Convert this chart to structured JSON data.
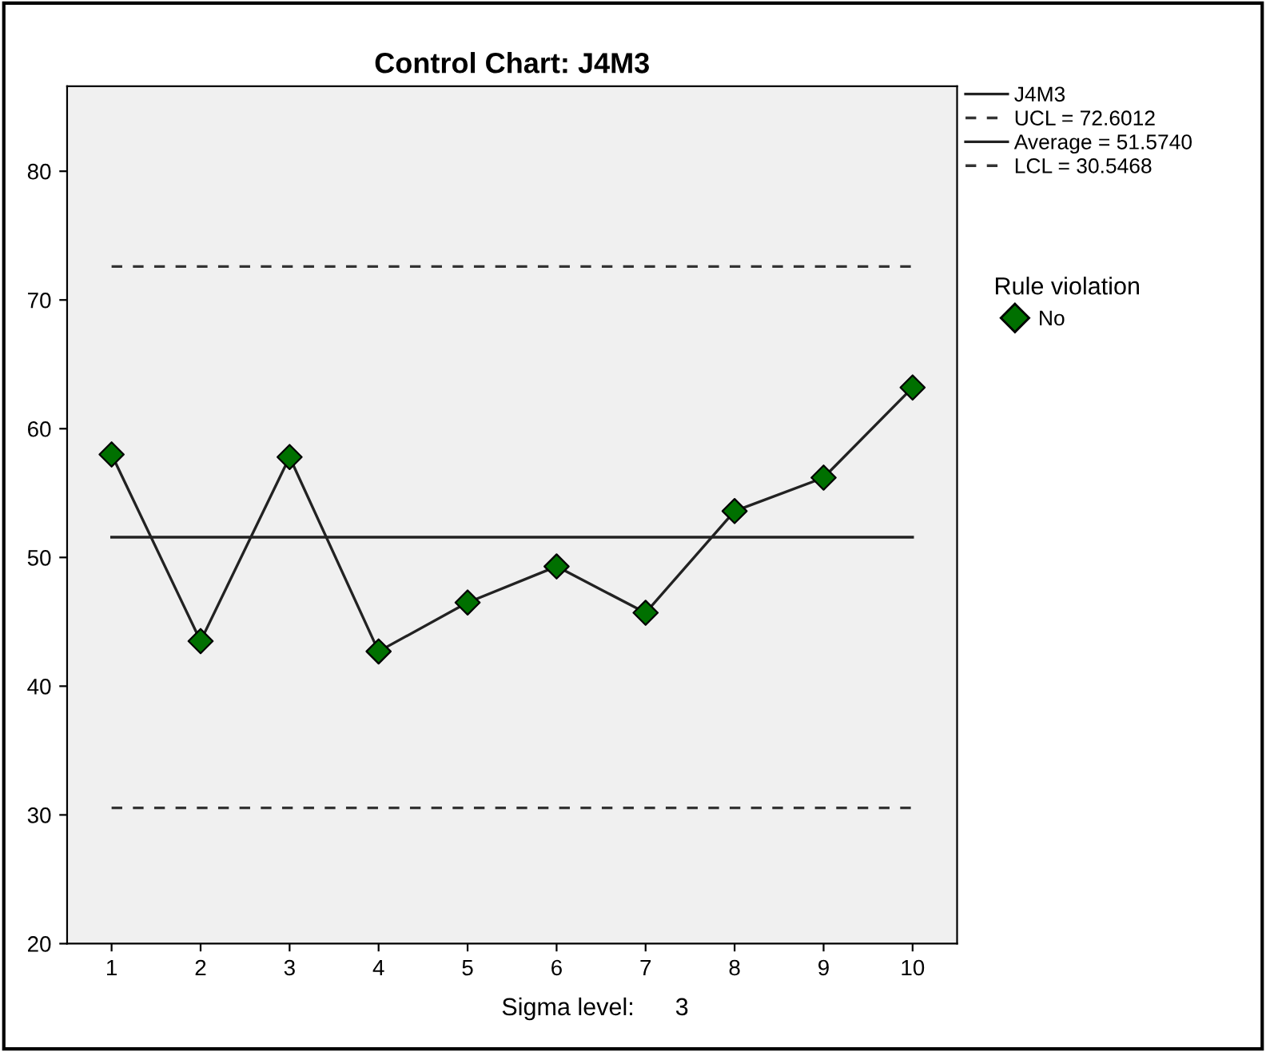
{
  "chart_data": {
    "type": "line",
    "title": "Control Chart: J4M3",
    "x": [
      1,
      2,
      3,
      4,
      5,
      6,
      7,
      8,
      9,
      10
    ],
    "series": [
      {
        "name": "J4M3",
        "color": "#222222",
        "marker": "none",
        "values": [
          58.0,
          43.5,
          57.8,
          42.7,
          46.5,
          49.3,
          45.7,
          53.6,
          56.2,
          63.2
        ]
      },
      {
        "name": "No",
        "type": "scatter",
        "color": "#007000",
        "marker": "diamond",
        "values": [
          58.0,
          43.5,
          57.8,
          42.7,
          46.5,
          49.3,
          45.7,
          53.6,
          56.2,
          63.2
        ]
      }
    ],
    "legend_title": "Rule violation",
    "ref_lines": [
      {
        "axis": "y",
        "value": 72.6012,
        "label": "UCL = 72.6012",
        "color": "#333333",
        "line_style": "dashed"
      },
      {
        "axis": "y",
        "value": 51.574,
        "label": "Average = 51.5740",
        "color": "#222222",
        "line_style": "solid"
      },
      {
        "axis": "y",
        "value": 30.5468,
        "label": "LCL = 30.5468",
        "color": "#333333",
        "line_style": "dashed"
      }
    ],
    "xlim": [
      0.5,
      10.5
    ],
    "xticks": [
      1,
      2,
      3,
      4,
      5,
      6,
      7,
      8,
      9,
      10
    ],
    "ylim": [
      20,
      86.6
    ],
    "yticks": [
      20,
      30,
      40,
      50,
      60,
      70,
      80
    ],
    "grid": false,
    "legend": "top right",
    "annotations": [
      "Sigma level:      3"
    ]
  }
}
